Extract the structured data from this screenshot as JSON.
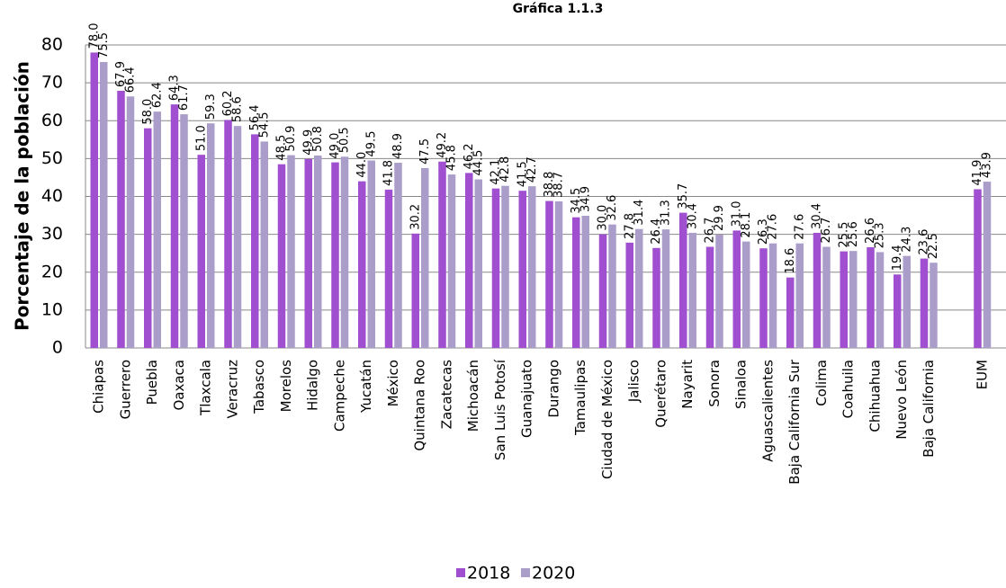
{
  "chart_data": {
    "type": "bar",
    "title": "Gráfica 1.1.3",
    "y_label": "Porcentaje de la población",
    "categories": [
      "Chiapas",
      "Guerrero",
      "Puebla",
      "Oaxaca",
      "Tlaxcala",
      "Veracruz",
      "Tabasco",
      "Morelos",
      "Hidalgo",
      "Campeche",
      "Yucatán",
      "México",
      "Quintana Roo",
      "Zacatecas",
      "Michoacán",
      "San Luis Potosí",
      "Guanajuato",
      "Durango",
      "Tamaulipas",
      "Ciudad de México",
      "Jalisco",
      "Querétaro",
      "Nayarit",
      "Sonora",
      "Sinaloa",
      "Aguascalientes",
      "Baja California Sur",
      "Colima",
      "Coahuila",
      "Chihuahua",
      "Nuevo León",
      "Baja California",
      null,
      "EUM"
    ],
    "series": [
      {
        "name": "2018",
        "color": "#9f4fcf",
        "values": [
          78.0,
          67.9,
          58.0,
          64.3,
          51.0,
          60.2,
          56.4,
          48.5,
          49.9,
          49.0,
          44.0,
          41.8,
          30.2,
          49.2,
          46.2,
          42.1,
          41.5,
          38.8,
          34.5,
          30.0,
          27.8,
          26.4,
          35.7,
          26.7,
          31.0,
          26.3,
          18.6,
          30.4,
          25.5,
          26.6,
          19.4,
          23.6,
          null,
          41.9
        ],
        "value_labels": [
          "78.0",
          "67.9",
          "58.0",
          "64.3",
          "51.0",
          "60.2",
          "56.4",
          "48.5",
          "49.9",
          "49.0",
          "44.0",
          "41.8",
          "30.2",
          "49.2",
          "46.2",
          "42.1",
          "41.5",
          "38.8",
          "34.5",
          "30.0",
          "27.8",
          "26.4",
          "35.7",
          "26.7",
          "31.0",
          "26.3",
          "18.6",
          "30.4",
          "25.5",
          "26.6",
          "19.4",
          "23.6",
          null,
          "41.9"
        ]
      },
      {
        "name": "2020",
        "color": "#ab9dca",
        "values": [
          75.5,
          66.4,
          62.4,
          61.7,
          59.3,
          58.6,
          54.5,
          50.9,
          50.8,
          50.5,
          49.5,
          48.9,
          47.5,
          45.8,
          44.5,
          42.8,
          42.7,
          38.7,
          34.9,
          32.6,
          31.4,
          31.3,
          30.4,
          29.9,
          28.1,
          27.6,
          27.6,
          26.7,
          25.6,
          25.3,
          24.3,
          22.5,
          null,
          43.9
        ],
        "value_labels": [
          "75.5",
          "66.4",
          "62.4",
          "61.7",
          "59.3",
          "58.6",
          "54.5",
          "50.9",
          "50.8",
          "50.5",
          "49.5",
          "48.9",
          "47.5",
          "45.8",
          "44.5",
          "42.8",
          "42.7",
          "38.7",
          "34.9",
          "32.6",
          "31.4",
          "31.3",
          "30.4",
          "29.9",
          "28.1",
          "27.6",
          "27.6",
          "26.7",
          "25.6",
          "25.3",
          "24.3",
          "22.5",
          null,
          "43.9"
        ]
      }
    ],
    "ylim": [
      0,
      80
    ],
    "yticks": [
      0,
      10,
      20,
      30,
      40,
      50,
      60,
      70,
      80
    ],
    "grid": true,
    "legend": "bottom"
  }
}
